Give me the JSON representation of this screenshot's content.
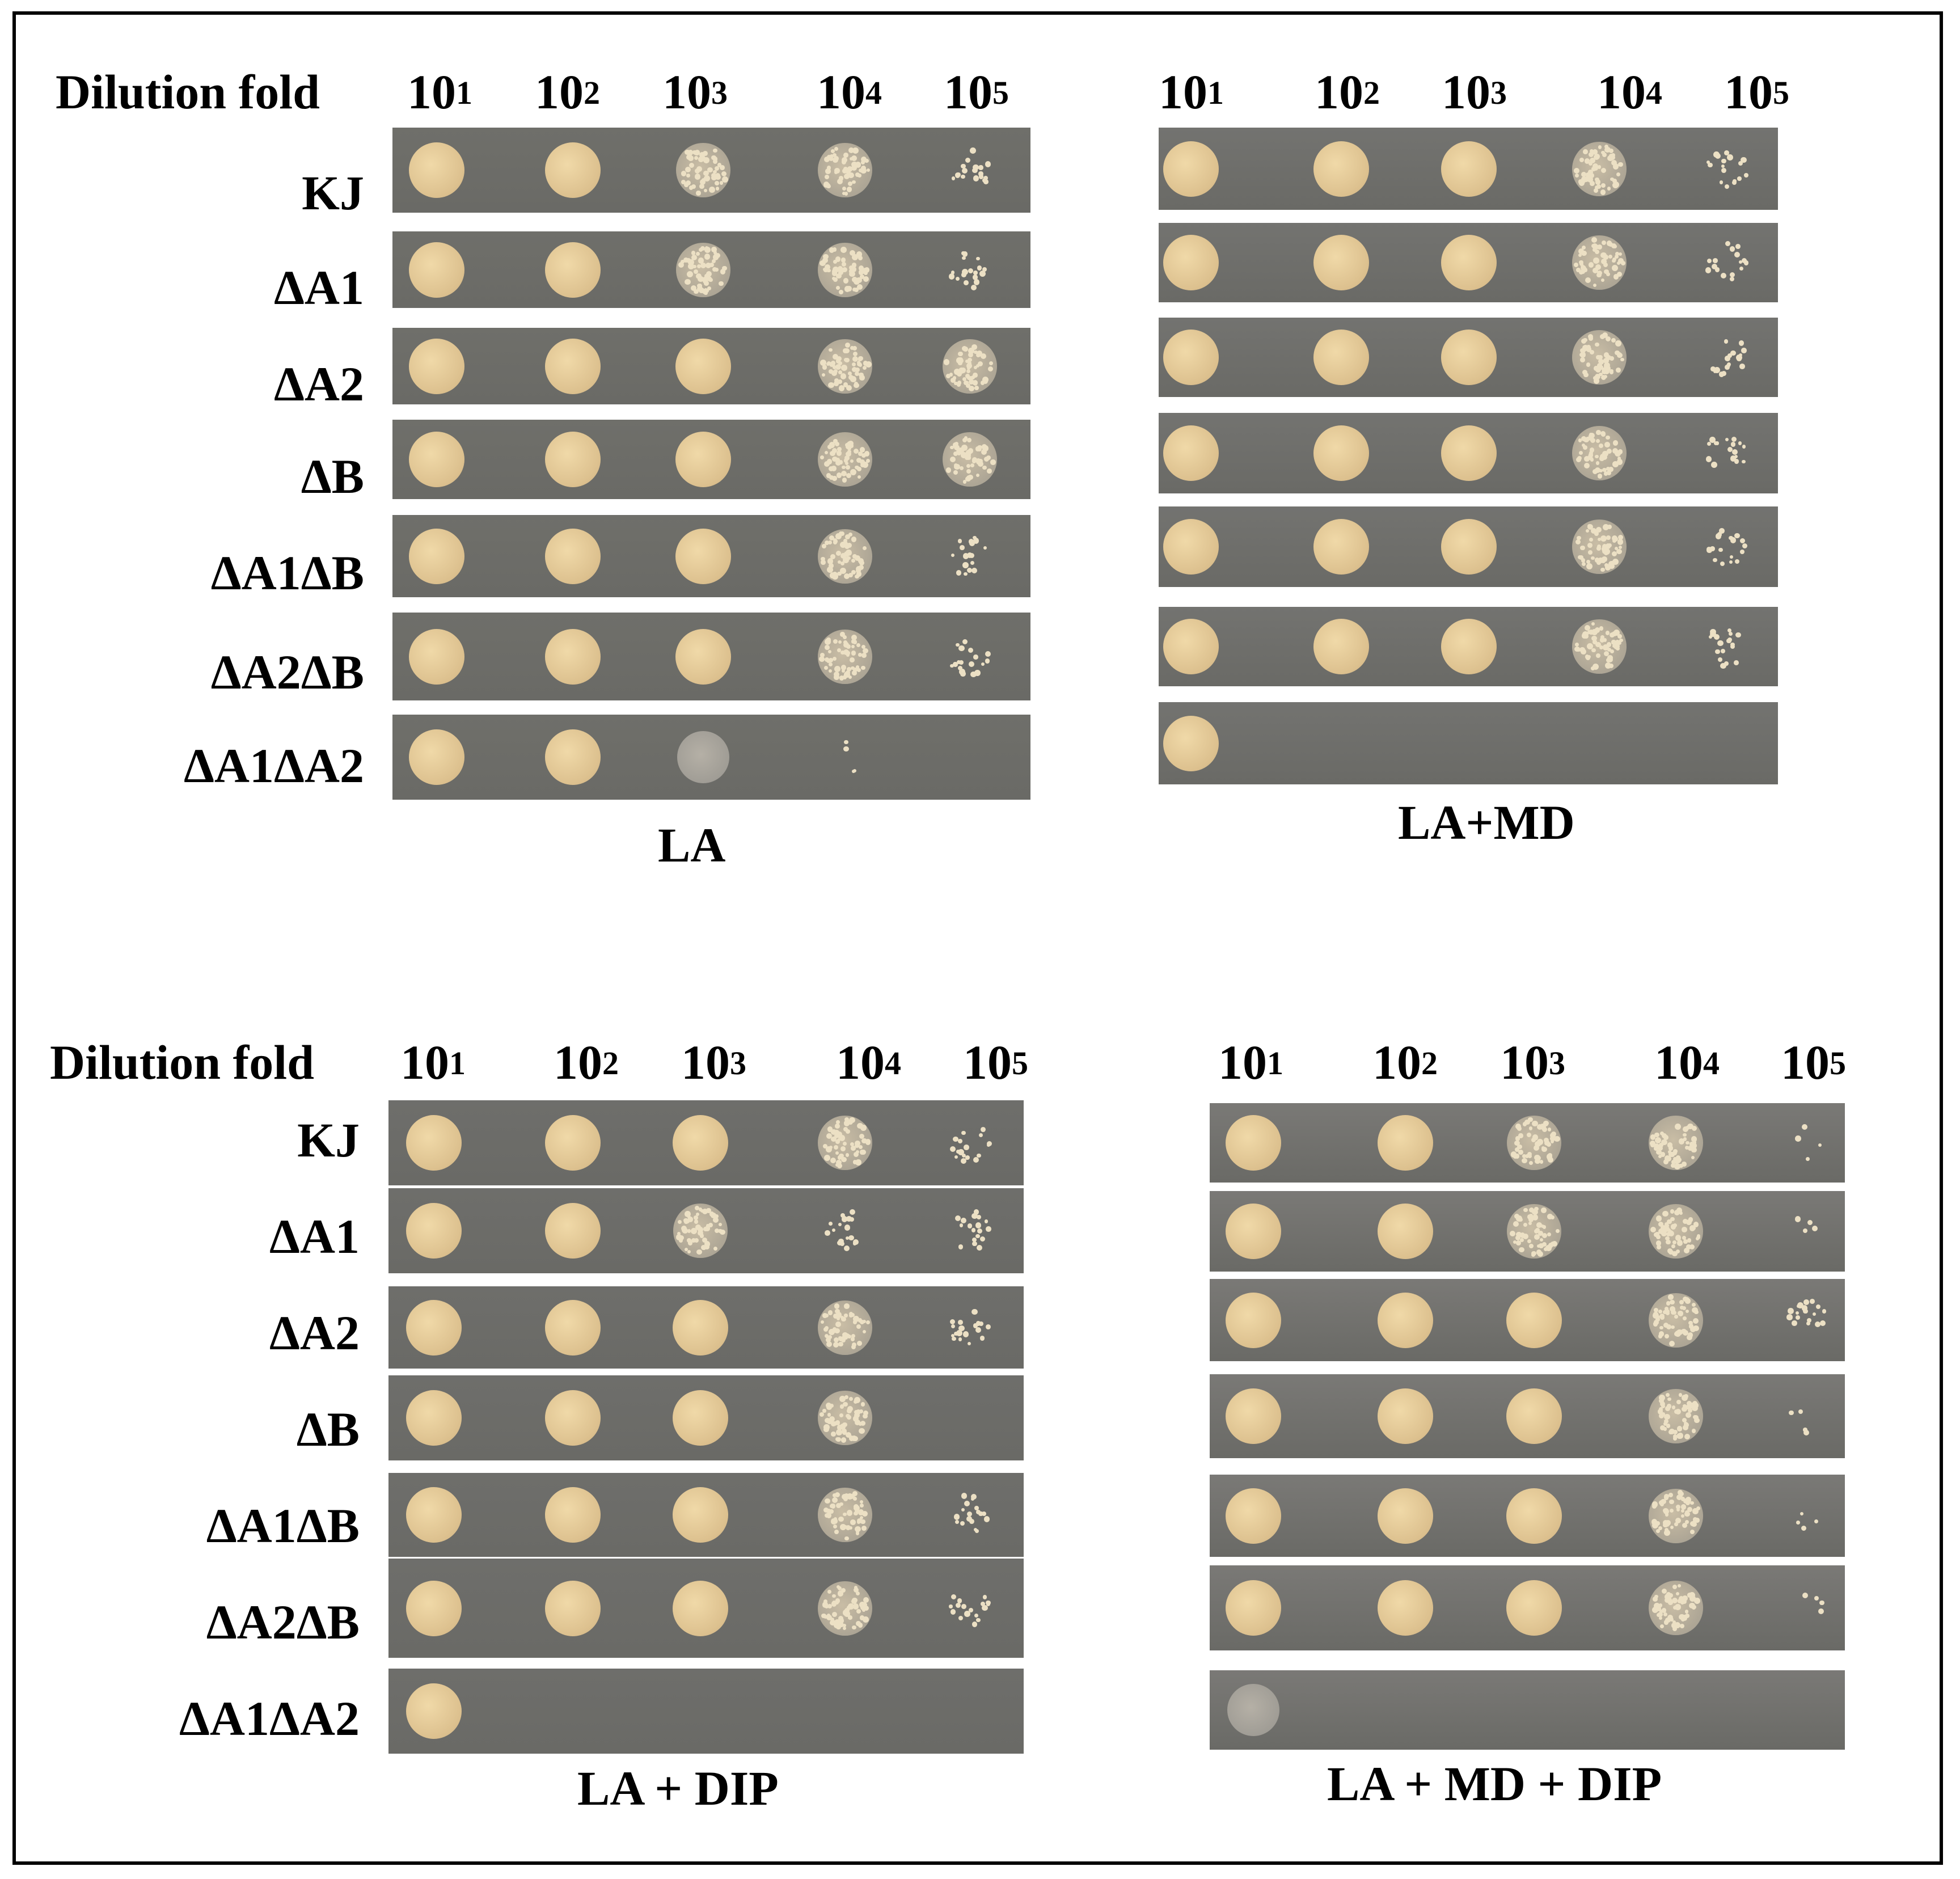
{
  "dilution_title": "Dilution fold",
  "dilutions": [
    {
      "base": "10",
      "exp": "1"
    },
    {
      "base": "10",
      "exp": "2"
    },
    {
      "base": "10",
      "exp": "3"
    },
    {
      "base": "10",
      "exp": "4"
    },
    {
      "base": "10",
      "exp": "5"
    }
  ],
  "strains": [
    "KJ",
    "ΔA1",
    "ΔA2",
    "ΔB",
    "ΔA1ΔB",
    "ΔA2ΔB",
    "ΔA1ΔA2"
  ],
  "panels": [
    {
      "id": "la",
      "condition": "LA",
      "bg": "#6f6f6a",
      "growth": [
        [
          "full",
          "full",
          "med",
          "med",
          "sparse"
        ],
        [
          "full",
          "full",
          "med",
          "med",
          "sparse"
        ],
        [
          "full",
          "full",
          "full",
          "med",
          "med"
        ],
        [
          "full",
          "full",
          "full",
          "med",
          "med"
        ],
        [
          "full",
          "full",
          "full",
          "med",
          "sparse"
        ],
        [
          "full",
          "full",
          "full",
          "med",
          "sparse"
        ],
        [
          "full",
          "full",
          "faint",
          "trace",
          "none"
        ]
      ]
    },
    {
      "id": "la-md",
      "condition": "LA+MD",
      "bg": "#737370",
      "growth": [
        [
          "full",
          "full",
          "full",
          "med",
          "sparse"
        ],
        [
          "full",
          "full",
          "full",
          "med",
          "sparse"
        ],
        [
          "full",
          "full",
          "full",
          "med",
          "sparse"
        ],
        [
          "full",
          "full",
          "full",
          "med",
          "sparse"
        ],
        [
          "full",
          "full",
          "full",
          "med",
          "sparse"
        ],
        [
          "full",
          "full",
          "full",
          "med",
          "sparse"
        ],
        [
          "full",
          "none",
          "none",
          "none",
          "none"
        ]
      ]
    },
    {
      "id": "la-dip",
      "condition": "LA + DIP",
      "bg": "#6e6e6b",
      "growth": [
        [
          "full",
          "full",
          "full",
          "med",
          "sparse"
        ],
        [
          "full",
          "full",
          "med",
          "sparse",
          "sparse"
        ],
        [
          "full",
          "full",
          "full",
          "med",
          "sparse"
        ],
        [
          "full",
          "full",
          "full",
          "med",
          "none"
        ],
        [
          "full",
          "full",
          "full",
          "med",
          "sparse"
        ],
        [
          "full",
          "full",
          "full",
          "med",
          "sparse"
        ],
        [
          "full",
          "none",
          "none",
          "none",
          "none"
        ]
      ]
    },
    {
      "id": "la-md-dip",
      "condition": "LA + MD + DIP",
      "bg": "#7a7976",
      "growth": [
        [
          "full",
          "full",
          "med",
          "med",
          "trace"
        ],
        [
          "full",
          "full",
          "med",
          "med",
          "trace"
        ],
        [
          "full",
          "full",
          "full",
          "med",
          "sparse"
        ],
        [
          "full",
          "full",
          "full",
          "med",
          "trace"
        ],
        [
          "full",
          "full",
          "full",
          "med",
          "trace"
        ],
        [
          "full",
          "full",
          "full",
          "med",
          "trace"
        ],
        [
          "faint",
          "none",
          "none",
          "none",
          "none"
        ]
      ]
    }
  ]
}
